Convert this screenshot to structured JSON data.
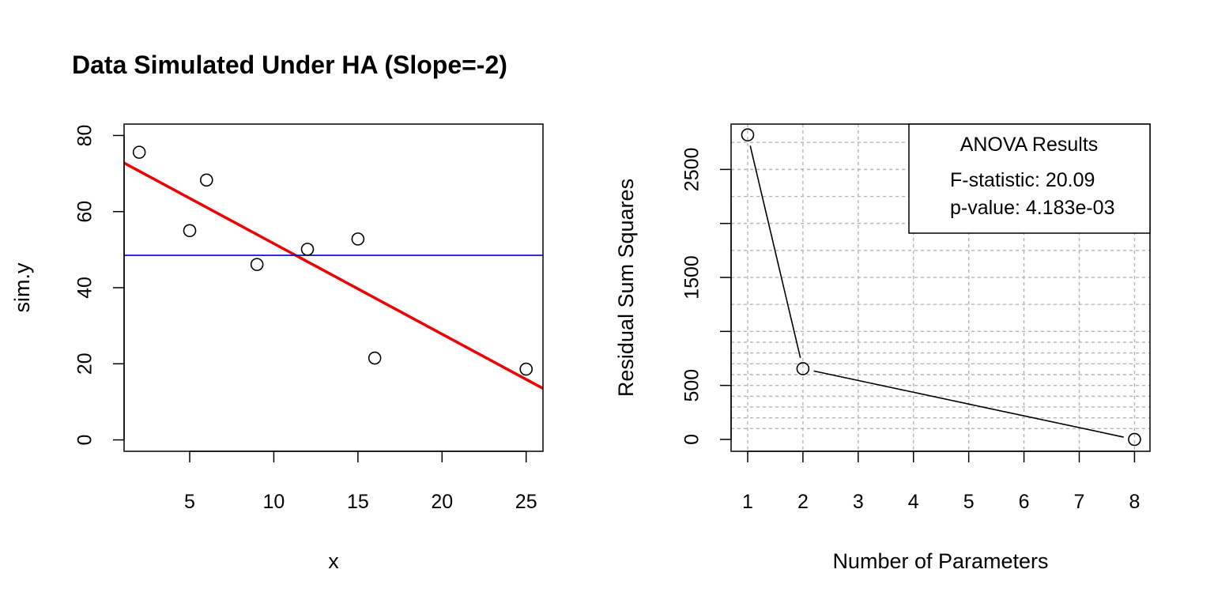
{
  "chart_data": [
    {
      "type": "scatter",
      "title": "Data Simulated Under HA (Slope=-2)",
      "xlabel": "x",
      "ylabel": "sim.y",
      "xlim": [
        1.1,
        26
      ],
      "ylim": [
        -3,
        83
      ],
      "xticks": [
        5,
        10,
        15,
        20,
        25
      ],
      "yticks": [
        0,
        20,
        40,
        60,
        80
      ],
      "points": [
        {
          "x": 2,
          "y": 75.6
        },
        {
          "x": 5,
          "y": 55.0
        },
        {
          "x": 6,
          "y": 68.3
        },
        {
          "x": 9,
          "y": 46.1
        },
        {
          "x": 12,
          "y": 50.1
        },
        {
          "x": 15,
          "y": 52.8
        },
        {
          "x": 16,
          "y": 21.5
        },
        {
          "x": 25,
          "y": 18.6
        }
      ],
      "lines": [
        {
          "kind": "fit",
          "color": "#ee0000",
          "intercept": 75.4,
          "slope": -2.38
        },
        {
          "kind": "mean",
          "color": "#0000cc",
          "y": 48.5
        }
      ]
    },
    {
      "type": "line",
      "title": "",
      "xlabel": "Number of Parameters",
      "ylabel": "Residual Sum Squares",
      "xlim": [
        0.7,
        8.28
      ],
      "ylim": [
        -110,
        2920
      ],
      "xticks": [
        1,
        2,
        3,
        4,
        5,
        6,
        7,
        8
      ],
      "yticks": [
        0,
        500,
        1500,
        2500
      ],
      "grid": true,
      "grid_h": [
        100,
        200,
        300,
        400,
        500,
        600,
        700,
        800,
        900,
        1000,
        1250,
        1500,
        1750,
        2000,
        2250,
        2500,
        2750
      ],
      "points": [
        {
          "x": 1,
          "y": 2820
        },
        {
          "x": 2,
          "y": 655
        },
        {
          "x": 8,
          "y": 0
        }
      ],
      "legend": {
        "position": "top-right",
        "title": "ANOVA Results",
        "lines": [
          "F-statistic: 20.09",
          "p-value: 4.183e-03"
        ]
      }
    }
  ]
}
